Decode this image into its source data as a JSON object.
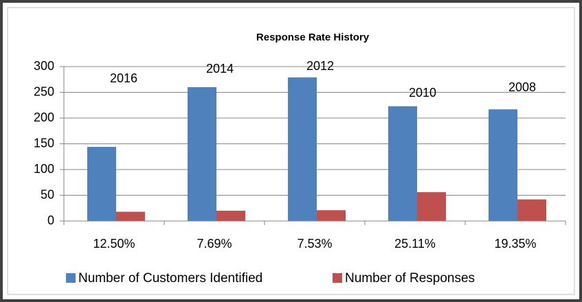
{
  "chart_data": {
    "type": "bar",
    "title": "Response Rate History",
    "categories": [
      "12.50%",
      "7.69%",
      "7.53%",
      "25.11%",
      "19.35%"
    ],
    "annotations": [
      "2016",
      "2014",
      "2012",
      "2010",
      "2008"
    ],
    "series": [
      {
        "name": "Number of Customers Identified",
        "color": "#4f81bd",
        "values": [
          144,
          260,
          279,
          223,
          217
        ]
      },
      {
        "name": "Number of Responses",
        "color": "#c0504d",
        "values": [
          18,
          20,
          21,
          56,
          42
        ]
      }
    ],
    "ylim": [
      0,
      300
    ],
    "yticks": [
      0,
      50,
      100,
      150,
      200,
      250,
      300
    ],
    "grid": true,
    "legend": "bottom"
  }
}
